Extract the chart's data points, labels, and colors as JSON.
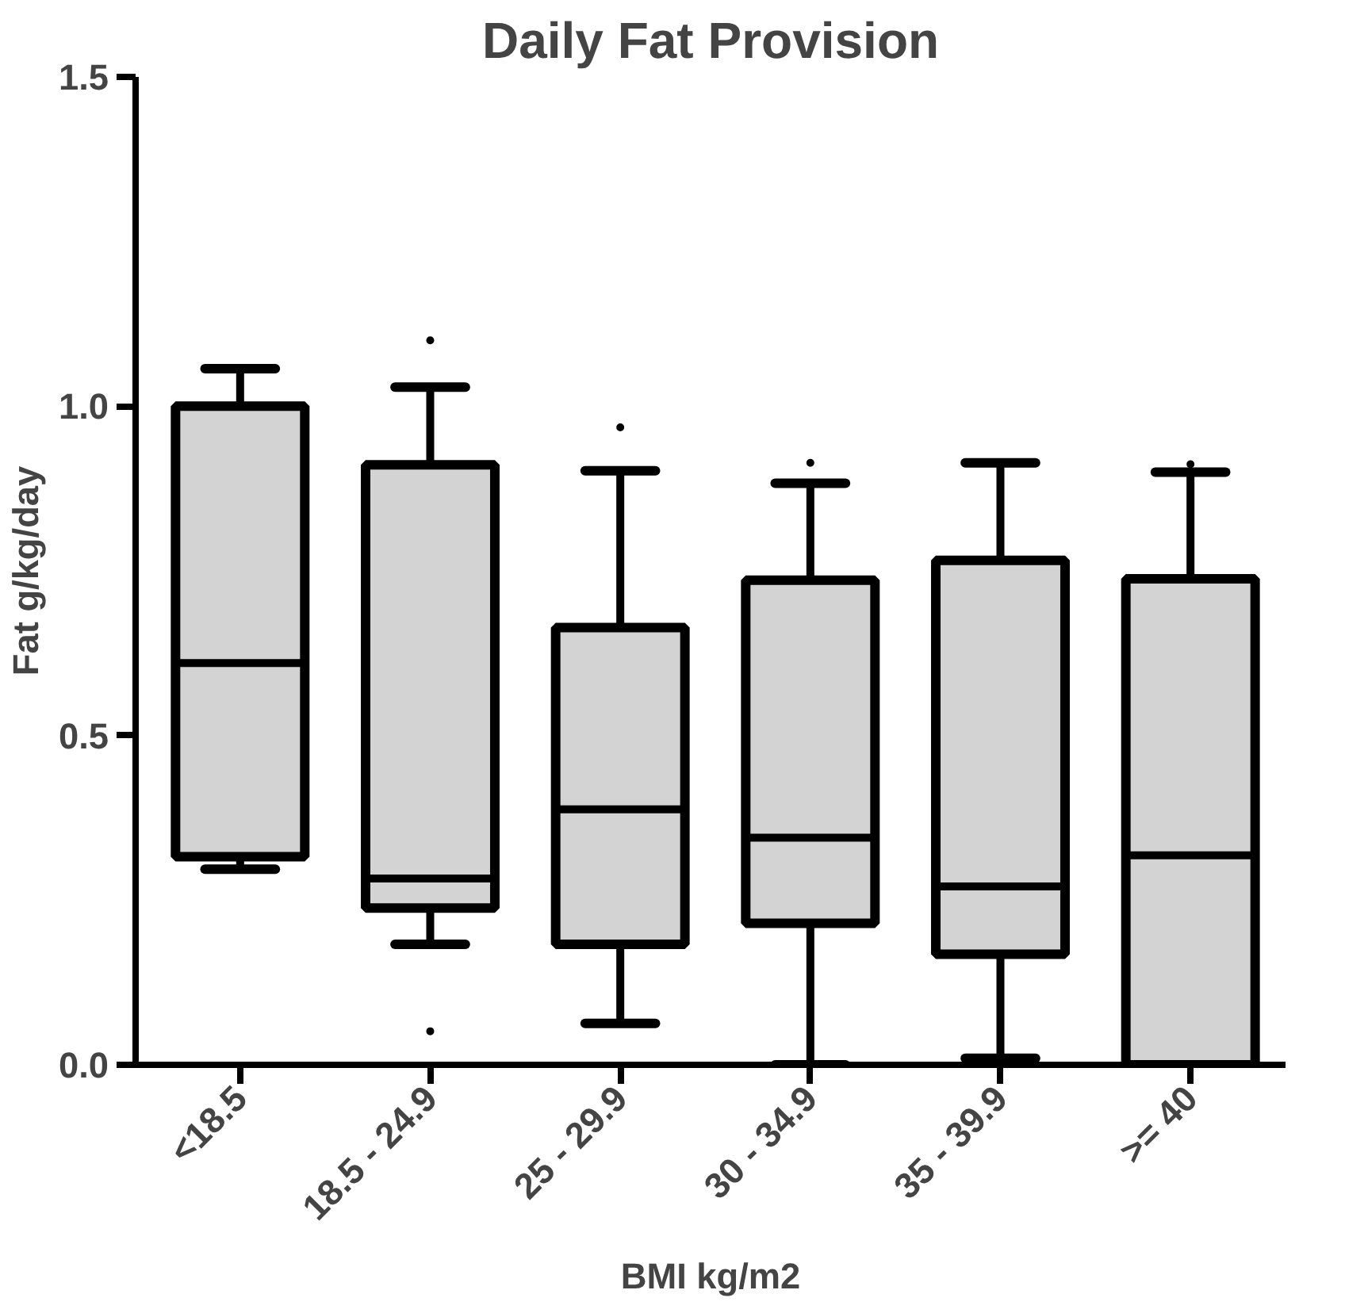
{
  "chart_data": {
    "type": "box",
    "title": "Daily Fat Provision",
    "xlabel": "BMI kg/m2",
    "ylabel": "Fat g/kg/day",
    "categories": [
      "<18.5",
      "18.5 - 24.9",
      "25 - 29.9",
      "30 - 34.9",
      "35 - 39.9",
      ">= 40"
    ],
    "boxes": [
      {
        "low": 0.297,
        "q1": 0.316,
        "median": 0.61,
        "q3": 1.0,
        "high": 1.057
      },
      {
        "low": 0.183,
        "q1": 0.238,
        "median": 0.283,
        "q3": 0.911,
        "high": 1.029,
        "outliers": [
          1.1,
          0.051
        ]
      },
      {
        "low": 0.063,
        "q1": 0.183,
        "median": 0.388,
        "q3": 0.664,
        "high": 0.902,
        "outliers": [
          0.968
        ]
      },
      {
        "low": 0.0,
        "q1": 0.215,
        "median": 0.345,
        "q3": 0.736,
        "high": 0.883,
        "outliers": [
          0.914
        ]
      },
      {
        "low": 0.01,
        "q1": 0.168,
        "median": 0.271,
        "q3": 0.766,
        "high": 0.914
      },
      {
        "low": 0.0,
        "q1": 0.0,
        "median": 0.318,
        "q3": 0.738,
        "high": 0.9,
        "outliers": [
          0.912
        ]
      }
    ],
    "color": "#d3d3d3",
    "ylim": [
      0,
      1.5
    ],
    "yticks": [
      {
        "value": 0,
        "label": "0.0"
      },
      {
        "value": 0.5,
        "label": "0.5"
      },
      {
        "value": 1.0,
        "label": "1.0"
      },
      {
        "value": 1.5,
        "label": "1.5"
      }
    ],
    "grid": false
  }
}
